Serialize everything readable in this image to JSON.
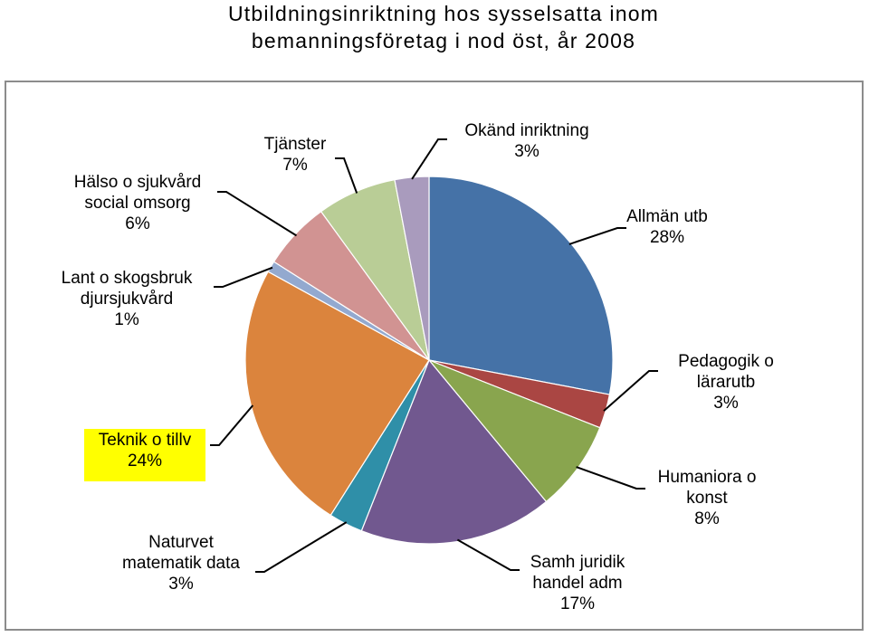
{
  "chart_data": {
    "type": "pie",
    "title": "Utbildningsinriktning hos sysselsatta inom bemanningsföretag i nod öst, år 2008",
    "title_lines": [
      "Utbildningsinriktning hos sysselsatta inom",
      "bemanningsföretag i nod öst, år 2008"
    ],
    "slices": [
      {
        "label": [
          "Allmän utb"
        ],
        "pct": "28%",
        "value": 28,
        "color": "#4572a7"
      },
      {
        "label": [
          "Pedagogik o",
          "lärarutb"
        ],
        "pct": "3%",
        "value": 3,
        "color": "#aa4643"
      },
      {
        "label": [
          "Humaniora o",
          "konst"
        ],
        "pct": "8%",
        "value": 8,
        "color": "#89a54e"
      },
      {
        "label": [
          "Samh juridik",
          "handel adm"
        ],
        "pct": "17%",
        "value": 17,
        "color": "#71588f"
      },
      {
        "label": [
          "Naturvet",
          "matematik data"
        ],
        "pct": "3%",
        "value": 3,
        "color": "#2f8fa8"
      },
      {
        "label": [
          "Teknik o tillv"
        ],
        "pct": "24%",
        "value": 24,
        "color": "#db843d",
        "highlight": "#ffff00"
      },
      {
        "label": [
          "Lant o skogsbruk",
          "djursjukvård"
        ],
        "pct": "1%",
        "value": 1,
        "color": "#93a9cf"
      },
      {
        "label": [
          "Hälso o sjukvård",
          "social omsorg"
        ],
        "pct": "6%",
        "value": 6,
        "color": "#d19392"
      },
      {
        "label": [
          "Tjänster"
        ],
        "pct": "7%",
        "value": 7,
        "color": "#b9cd96"
      },
      {
        "label": [
          "Okänd inriktning"
        ],
        "pct": "3%",
        "value": 3,
        "color": "#a99bbd"
      }
    ]
  }
}
